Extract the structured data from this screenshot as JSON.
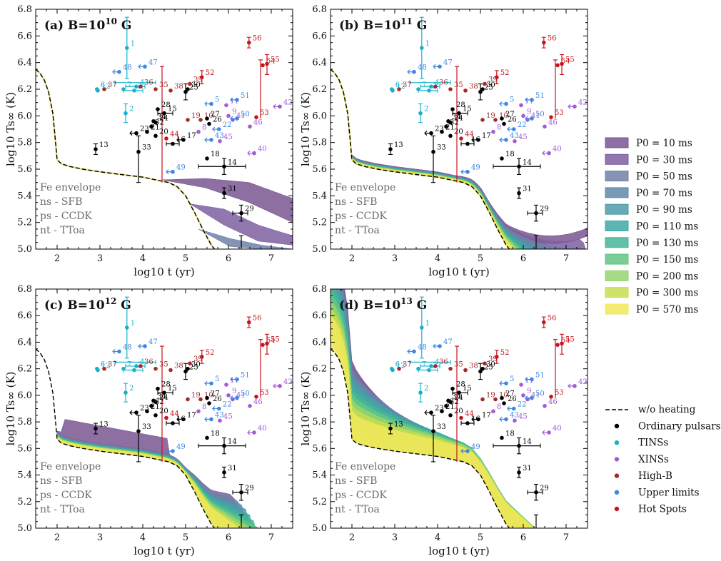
{
  "chart_data": {
    "type": "scatter",
    "figure": "Neutron star cooling curves with rotochemical heating",
    "panels": [
      {
        "id": "a",
        "label": "(a)",
        "title": "B=10",
        "exponent": "10",
        "unit": "G",
        "bands": [
          0,
          1,
          2
        ]
      },
      {
        "id": "b",
        "label": "(b)",
        "title": "B=10",
        "exponent": "11",
        "unit": "G",
        "bands": [
          0,
          1,
          2,
          3,
          4,
          5,
          6,
          7,
          8,
          9,
          10
        ]
      },
      {
        "id": "c",
        "label": "(c)",
        "title": "B=10",
        "exponent": "12",
        "unit": "G",
        "bands": [
          0,
          1,
          2,
          3,
          4,
          5,
          6,
          7,
          8,
          9,
          10
        ]
      },
      {
        "id": "d",
        "label": "(d)",
        "title": "B=10",
        "exponent": "13",
        "unit": "G",
        "bands": [
          0,
          1,
          2,
          3,
          4,
          5,
          6,
          7,
          8,
          9,
          10
        ]
      }
    ],
    "xlabel": "log10 t (yr)",
    "ylabel": "log10 Ts∞ (K)",
    "xlim": [
      1.5,
      7.5
    ],
    "ylim": [
      5.0,
      6.8
    ],
    "xticks": [
      "2",
      "3",
      "4",
      "5",
      "6",
      "7"
    ],
    "yticks": [
      "5.0",
      "5.2",
      "5.4",
      "5.6",
      "5.8",
      "6.0",
      "6.2",
      "6.4",
      "6.6",
      "6.8"
    ],
    "model_notes": [
      "Fe envelope",
      "ns - SFB",
      "ps - CCDK",
      "nt - TToa"
    ],
    "no_heating_curve": {
      "label": "w/o heating",
      "x": [
        1.5,
        1.6,
        1.7,
        1.8,
        1.9,
        1.95,
        2.0,
        2.1,
        2.3,
        2.6,
        3.0,
        3.5,
        4.0,
        4.3,
        4.6,
        4.8,
        5.0,
        5.2,
        5.4,
        5.6,
        5.7,
        5.8
      ],
      "y": [
        6.35,
        6.32,
        6.27,
        6.18,
        6.02,
        5.85,
        5.67,
        5.64,
        5.62,
        5.6,
        5.58,
        5.56,
        5.54,
        5.52,
        5.5,
        5.47,
        5.4,
        5.28,
        5.15,
        5.03,
        4.99,
        4.95
      ]
    },
    "series": [
      {
        "name": "P0 = 10 ms",
        "color": "#7a5691"
      },
      {
        "name": "P0 = 30 ms",
        "color": "#7c5f9f"
      },
      {
        "name": "P0 = 50 ms",
        "color": "#7080a8"
      },
      {
        "name": "P0 = 70 ms",
        "color": "#5f8aa8"
      },
      {
        "name": "P0 = 90 ms",
        "color": "#4d9ba8"
      },
      {
        "name": "P0 = 110 ms",
        "color": "#3fa8a3"
      },
      {
        "name": "P0 = 130 ms",
        "color": "#45b596"
      },
      {
        "name": "P0 = 150 ms",
        "color": "#63c583"
      },
      {
        "name": "P0 = 200 ms",
        "color": "#96d46e"
      },
      {
        "name": "P0 = 300 ms",
        "color": "#c6de4f"
      },
      {
        "name": "P0 = 570 ms",
        "color": "#f2e85c"
      }
    ],
    "data_classes": [
      {
        "key": "ord",
        "name": "Ordinary pulsars",
        "color": "#000000"
      },
      {
        "key": "tins",
        "name": "TINSs",
        "color": "#17b2c9"
      },
      {
        "key": "xins",
        "name": "XINSs",
        "color": "#a35ad6"
      },
      {
        "key": "hb",
        "name": "High-B",
        "color": "#a52a2a"
      },
      {
        "key": "ul",
        "name": "Upper limits",
        "color": "#3d86e3"
      },
      {
        "key": "hs",
        "name": "Hot Spots",
        "color": "#c8141e"
      }
    ],
    "points": [
      {
        "id": "1",
        "cls": "tins",
        "x": 3.63,
        "y": 6.51,
        "ylo": 6.28,
        "yhi": 6.74
      },
      {
        "id": "2",
        "cls": "tins",
        "x": 3.6,
        "y": 6.02,
        "ylo": 5.95,
        "yhi": 6.09
      },
      {
        "id": "3",
        "cls": "tins",
        "x": 3.8,
        "y": 6.19,
        "xlo": 3.55,
        "xhi": 4.0
      },
      {
        "id": "4",
        "cls": "tins",
        "x": 3.85,
        "y": 6.22,
        "xlo": 3.6,
        "xhi": 4.05
      },
      {
        "id": "5",
        "cls": "ul",
        "x": 5.6,
        "y": 6.09,
        "arrow": "left"
      },
      {
        "id": "6",
        "cls": "tins",
        "x": 2.93,
        "y": 6.2
      },
      {
        "id": "7",
        "cls": "tins",
        "x": 3.55,
        "y": 6.2
      },
      {
        "id": "8",
        "cls": "xins",
        "x": 5.3,
        "y": 5.88
      },
      {
        "id": "9",
        "cls": "xins",
        "x": 6.0,
        "y": 6.0
      },
      {
        "id": "10",
        "cls": "hb",
        "x": 5.35,
        "y": 5.97
      },
      {
        "id": "11",
        "cls": "xins",
        "x": 5.95,
        "y": 6.08
      },
      {
        "id": "12",
        "cls": "tins",
        "x": 2.95,
        "y": 6.19
      },
      {
        "id": "13",
        "cls": "ord",
        "x": 2.9,
        "y": 5.75,
        "ylo": 5.71,
        "yhi": 5.79
      },
      {
        "id": "14",
        "cls": "ord",
        "x": 5.9,
        "y": 5.62,
        "xlo": 5.3,
        "xhi": 6.4,
        "ylo": 5.56,
        "yhi": 5.68
      },
      {
        "id": "15",
        "cls": "ord",
        "x": 4.5,
        "y": 6.02,
        "xlo": 4.35,
        "xhi": 4.7
      },
      {
        "id": "16",
        "cls": "ord",
        "x": 4.7,
        "y": 5.79,
        "xlo": 4.55,
        "xhi": 4.85
      },
      {
        "id": "17",
        "cls": "ord",
        "x": 4.95,
        "y": 5.82,
        "arrow": "left"
      },
      {
        "id": "18",
        "cls": "ord",
        "x": 5.5,
        "y": 5.68
      },
      {
        "id": "19",
        "cls": "hb",
        "x": 5.05,
        "y": 5.97
      },
      {
        "id": "20",
        "cls": "ord",
        "x": 4.3,
        "y": 5.85
      },
      {
        "id": "21",
        "cls": "ord",
        "x": 4.1,
        "y": 5.88
      },
      {
        "id": "22",
        "cls": "ul",
        "x": 5.78,
        "y": 5.9,
        "arrow": "left"
      },
      {
        "id": "23",
        "cls": "ord",
        "x": 3.85,
        "y": 5.87,
        "arrow": "left"
      },
      {
        "id": "24",
        "cls": "ord",
        "x": 4.3,
        "y": 5.95
      },
      {
        "id": "25",
        "cls": "ord",
        "x": 5.0,
        "y": 6.18,
        "ylo": 6.12,
        "yhi": 6.24
      },
      {
        "id": "26",
        "cls": "ord",
        "x": 5.55,
        "y": 5.94
      },
      {
        "id": "27",
        "cls": "ord",
        "x": 5.5,
        "y": 5.98
      },
      {
        "id": "28",
        "cls": "ord",
        "x": 4.35,
        "y": 6.05
      },
      {
        "id": "29",
        "cls": "ord",
        "x": 6.3,
        "y": 5.27,
        "ylo": 5.21,
        "yhi": 5.33,
        "xlo": 6.1,
        "xhi": 6.45
      },
      {
        "id": "30",
        "cls": "ord",
        "x": 5.05,
        "y": 6.2
      },
      {
        "id": "31",
        "cls": "ord",
        "x": 5.9,
        "y": 5.42,
        "ylo": 5.38,
        "yhi": 5.46
      },
      {
        "id": "32",
        "cls": "ord",
        "x": 4.2,
        "y": 5.92
      },
      {
        "id": "33",
        "cls": "ord",
        "x": 3.9,
        "y": 5.73,
        "ylo": 5.5,
        "yhi": 5.85
      },
      {
        "id": "34",
        "cls": "ord",
        "x": 4.25,
        "y": 5.96
      },
      {
        "id": "35",
        "cls": "hb",
        "x": 4.3,
        "y": 6.2
      },
      {
        "id": "36",
        "cls": "hb",
        "x": 3.95,
        "y": 6.22
      },
      {
        "id": "37",
        "cls": "hb",
        "x": 3.1,
        "y": 6.2
      },
      {
        "id": "38",
        "cls": "hb",
        "x": 4.65,
        "y": 6.19
      },
      {
        "id": "39",
        "cls": "hb",
        "x": 5.1,
        "y": 6.24
      },
      {
        "id": "40",
        "cls": "xins",
        "x": 6.6,
        "y": 5.72,
        "arrow": "left"
      },
      {
        "id": "41",
        "cls": "xins",
        "x": 6.1,
        "y": 5.97
      },
      {
        "id": "42",
        "cls": "xins",
        "x": 7.2,
        "y": 6.07,
        "arrow": "left"
      },
      {
        "id": "43",
        "cls": "ul",
        "x": 5.6,
        "y": 5.82,
        "arrow": "left"
      },
      {
        "id": "44",
        "cls": "hs",
        "x": 4.55,
        "y": 5.83
      },
      {
        "id": "45",
        "cls": "xins",
        "x": 5.8,
        "y": 5.81
      },
      {
        "id": "46",
        "cls": "xins",
        "x": 6.5,
        "y": 5.92
      },
      {
        "id": "47",
        "cls": "ul",
        "x": 4.05,
        "y": 6.37,
        "arrow": "left"
      },
      {
        "id": "48",
        "cls": "ul",
        "x": 3.45,
        "y": 6.33,
        "arrow": "left"
      },
      {
        "id": "49",
        "cls": "ul",
        "x": 4.7,
        "y": 5.58,
        "arrow": "left"
      },
      {
        "id": "50",
        "cls": "ul",
        "x": 6.2,
        "y": 5.98,
        "arrow": "left"
      },
      {
        "id": "51",
        "cls": "ul",
        "x": 6.2,
        "y": 6.12,
        "arrow": "left"
      },
      {
        "id": "52",
        "cls": "hs",
        "x": 5.38,
        "y": 6.29,
        "ylo": 6.24,
        "yhi": 6.34
      },
      {
        "id": "53",
        "cls": "hs",
        "x": 6.65,
        "y": 5.99
      },
      {
        "id": "54",
        "cls": "hs",
        "x": 6.8,
        "y": 6.38
      },
      {
        "id": "55",
        "cls": "hs",
        "x": 6.9,
        "y": 6.39,
        "ylo": 6.31,
        "yhi": 6.46
      },
      {
        "id": "56",
        "cls": "hs",
        "x": 6.48,
        "y": 6.55,
        "ylo": 6.51,
        "yhi": 6.59
      }
    ],
    "big_error_bars": [
      {
        "cls": "tins",
        "x": 3.63,
        "y": 6.25,
        "xlo": 3.35,
        "xhi": 4.3
      },
      {
        "cls": "hs",
        "x": 4.45,
        "y": 6.23,
        "ylo": 5.5,
        "yhi": 6.37
      },
      {
        "cls": "ord",
        "x": 6.3,
        "y": 5.0,
        "ylo": 4.95,
        "yhi": 5.1
      },
      {
        "cls": "hs",
        "x": 6.75,
        "y": 6.35,
        "ylo": 5.98,
        "yhi": 6.42
      }
    ]
  }
}
